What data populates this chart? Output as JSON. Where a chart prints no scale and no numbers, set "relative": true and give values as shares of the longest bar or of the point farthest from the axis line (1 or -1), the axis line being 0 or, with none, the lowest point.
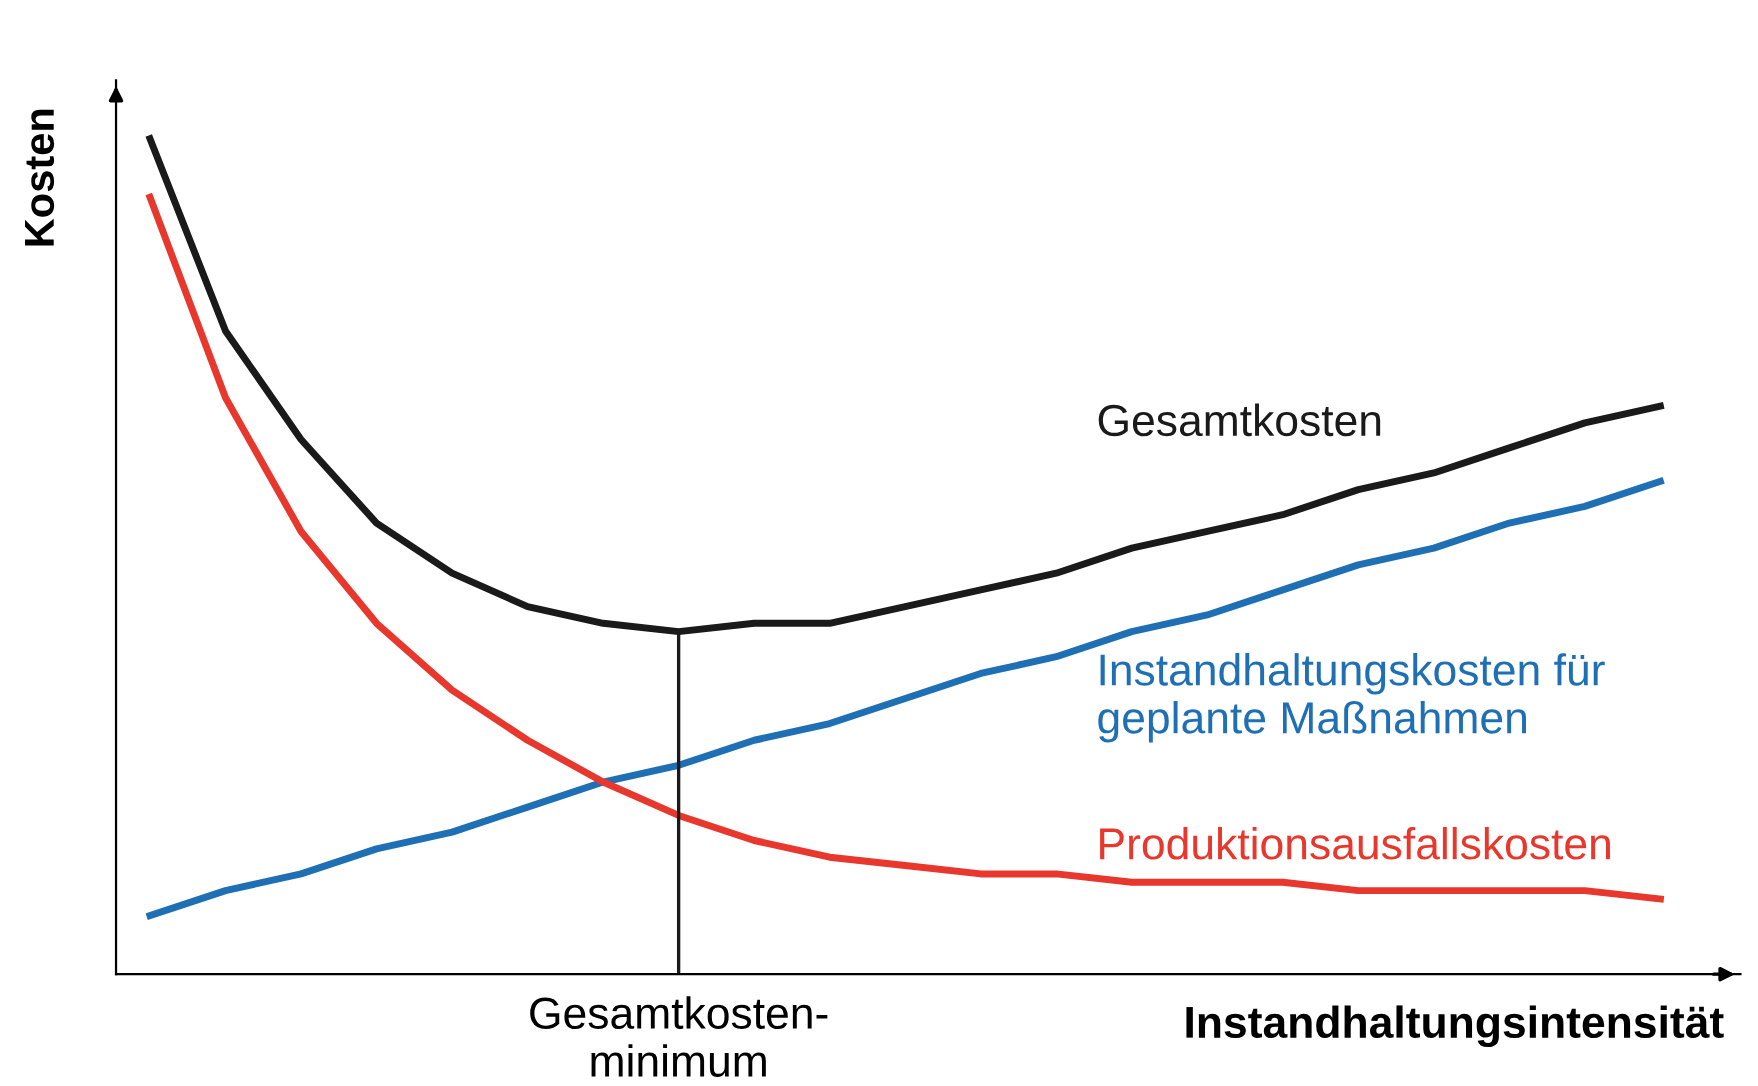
{
  "chart_data": {
    "type": "line",
    "relative": true,
    "xlabel": "Instandhaltungsintensität",
    "ylabel": "Kosten",
    "categories": [
      null,
      null,
      null,
      null,
      null,
      null,
      null,
      null,
      null,
      null,
      null,
      null,
      null,
      null,
      null,
      null,
      null,
      null,
      null,
      null,
      null
    ],
    "series": [
      {
        "name": "Gesamtkosten",
        "color": "#1a1a1a",
        "values": [
          1.0,
          0.77,
          0.64,
          0.54,
          0.48,
          0.44,
          0.42,
          0.41,
          0.42,
          0.42,
          0.44,
          0.46,
          0.48,
          0.51,
          0.53,
          0.55,
          0.58,
          0.6,
          0.63,
          0.66,
          0.68
        ]
      },
      {
        "name": "Instandhaltungskosten für\ngeplante Maßnahmen",
        "color": "#1f6fb4",
        "values": [
          0.07,
          0.1,
          0.12,
          0.15,
          0.17,
          0.2,
          0.23,
          0.25,
          0.28,
          0.3,
          0.33,
          0.36,
          0.38,
          0.41,
          0.43,
          0.46,
          0.49,
          0.51,
          0.54,
          0.56,
          0.59
        ]
      },
      {
        "name": "Produktionsausfallskosten",
        "color": "#e8372c",
        "values": [
          0.93,
          0.69,
          0.53,
          0.42,
          0.34,
          0.28,
          0.23,
          0.19,
          0.16,
          0.14,
          0.13,
          0.12,
          0.12,
          0.11,
          0.11,
          0.11,
          0.1,
          0.1,
          0.1,
          0.1,
          0.09
        ]
      }
    ],
    "annotations": [
      "Gesamtkosten-\nminimum"
    ],
    "legend": false
  }
}
